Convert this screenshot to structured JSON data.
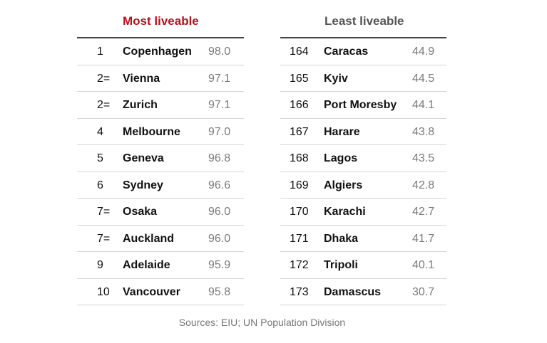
{
  "colors": {
    "most_title": "#b5121b",
    "least_title": "#555555",
    "rule": "#444444",
    "score": "#7a7a7a"
  },
  "chart_data": {
    "type": "table",
    "source": "Sources: EIU; UN Population Division",
    "tables": [
      {
        "title": "Most liveable",
        "rows": [
          {
            "rank": "1",
            "city": "Copenhagen",
            "score": "98.0"
          },
          {
            "rank": "2=",
            "city": "Vienna",
            "score": "97.1"
          },
          {
            "rank": "2=",
            "city": "Zurich",
            "score": "97.1"
          },
          {
            "rank": "4",
            "city": "Melbourne",
            "score": "97.0"
          },
          {
            "rank": "5",
            "city": "Geneva",
            "score": "96.8"
          },
          {
            "rank": "6",
            "city": "Sydney",
            "score": "96.6"
          },
          {
            "rank": "7=",
            "city": "Osaka",
            "score": "96.0"
          },
          {
            "rank": "7=",
            "city": "Auckland",
            "score": "96.0"
          },
          {
            "rank": "9",
            "city": "Adelaide",
            "score": "95.9"
          },
          {
            "rank": "10",
            "city": "Vancouver",
            "score": "95.8"
          }
        ]
      },
      {
        "title": "Least liveable",
        "rows": [
          {
            "rank": "164",
            "city": "Caracas",
            "score": "44.9"
          },
          {
            "rank": "165",
            "city": "Kyiv",
            "score": "44.5"
          },
          {
            "rank": "166",
            "city": "Port Moresby",
            "score": "44.1"
          },
          {
            "rank": "167",
            "city": "Harare",
            "score": "43.8"
          },
          {
            "rank": "168",
            "city": "Lagos",
            "score": "43.5"
          },
          {
            "rank": "169",
            "city": "Algiers",
            "score": "42.8"
          },
          {
            "rank": "170",
            "city": "Karachi",
            "score": "42.7"
          },
          {
            "rank": "171",
            "city": "Dhaka",
            "score": "41.7"
          },
          {
            "rank": "172",
            "city": "Tripoli",
            "score": "40.1"
          },
          {
            "rank": "173",
            "city": "Damascus",
            "score": "30.7"
          }
        ]
      }
    ]
  }
}
